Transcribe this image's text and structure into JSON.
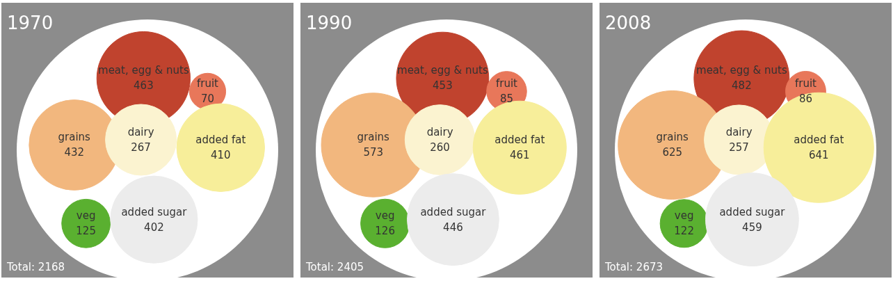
{
  "chart_data": [
    {
      "type": "other",
      "title": "1970",
      "categories": [
        "meat, egg & nuts",
        "fruit",
        "grains",
        "dairy",
        "added fat",
        "veg",
        "added sugar"
      ],
      "values": [
        463,
        70,
        432,
        267,
        410,
        125,
        402
      ],
      "colors": [
        "#c0432e",
        "#e8775a",
        "#f2b77e",
        "#fbf3d0",
        "#f7ee9a",
        "#5ab030",
        "#ececec"
      ],
      "annotations": [
        "Total: 2168"
      ],
      "data_labels": true
    },
    {
      "type": "other",
      "title": "1990",
      "categories": [
        "meat, egg & nuts",
        "fruit",
        "grains",
        "dairy",
        "added fat",
        "veg",
        "added sugar"
      ],
      "values": [
        453,
        85,
        573,
        260,
        461,
        126,
        446
      ],
      "colors": [
        "#c0432e",
        "#e8775a",
        "#f2b77e",
        "#fbf3d0",
        "#f7ee9a",
        "#5ab030",
        "#ececec"
      ],
      "annotations": [
        "Total: 2405"
      ],
      "data_labels": true
    },
    {
      "type": "other",
      "title": "2008",
      "categories": [
        "meat, egg & nuts",
        "fruit",
        "grains",
        "dairy",
        "added fat",
        "veg",
        "added sugar"
      ],
      "values": [
        482,
        86,
        625,
        257,
        641,
        122,
        459
      ],
      "colors": [
        "#c0432e",
        "#e8775a",
        "#f2b77e",
        "#fbf3d0",
        "#f7ee9a",
        "#5ab030",
        "#ececec"
      ],
      "annotations": [
        "Total: 2673"
      ],
      "data_labels": true
    }
  ]
}
